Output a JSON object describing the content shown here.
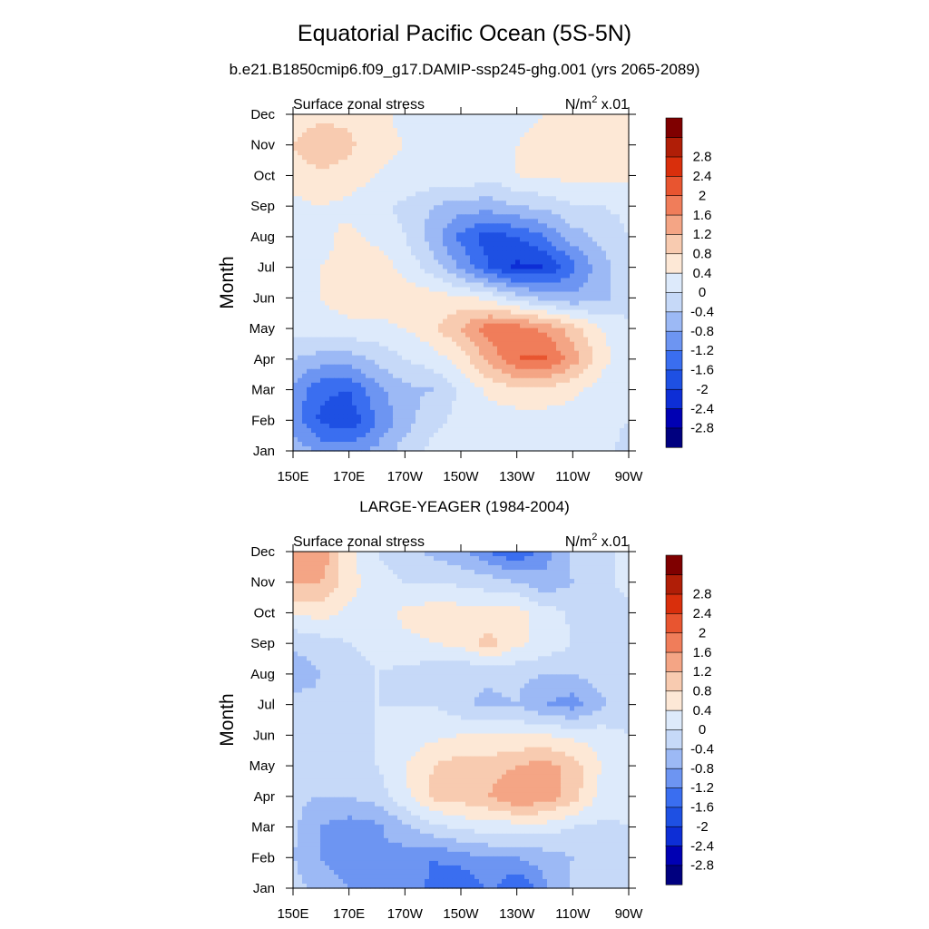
{
  "figure": {
    "title": "Equatorial Pacific Ocean (5S-5N)",
    "colorbar_colors": [
      "#00007f",
      "#0000b3",
      "#0d2ed6",
      "#1e50e3",
      "#3a6ef0",
      "#6d95f2",
      "#9cb9f5",
      "#c6d9f8",
      "#ddeafb",
      "#fde8d6",
      "#f8cbb0",
      "#f4a585",
      "#f07d5a",
      "#e85530",
      "#d92f0c",
      "#b01e07",
      "#7f0000"
    ],
    "colorbar_labels": [
      "-2.8",
      "-2.4",
      "-2",
      "-1.6",
      "-1.2",
      "-0.8",
      "-0.4",
      "0",
      "0.4",
      "0.8",
      "1.2",
      "1.6",
      "2",
      "2.4",
      "2.8"
    ]
  },
  "chart_data": [
    {
      "type": "heatmap",
      "title": "b.e21.B1850cmip6.f09_g17.DAMIP-ssp245-ghg.001 (yrs 2065-2089)",
      "left_string": "Surface zonal stress",
      "units_text": "N/m",
      "units_sup": "2",
      "units_suffix": " x.01",
      "ylabel": "Month",
      "xlim": [
        150,
        270
      ],
      "xticks": [
        150,
        170,
        190,
        210,
        230,
        250,
        270
      ],
      "xtick_labels": [
        "150E",
        "170E",
        "170W",
        "150W",
        "130W",
        "110W",
        "90W"
      ],
      "yticks": [
        1,
        2,
        3,
        4,
        5,
        6,
        7,
        8,
        9,
        10,
        11,
        12
      ],
      "ytick_labels": [
        "Jan",
        "Feb",
        "Mar",
        "Apr",
        "May",
        "Jun",
        "Jul",
        "Aug",
        "Sep",
        "Oct",
        "Nov",
        "Dec"
      ],
      "contour_levels": [
        -2.8,
        -2.4,
        -2,
        -1.6,
        -1.2,
        -0.8,
        -0.4,
        0,
        0.4,
        0.8,
        1.2,
        1.6,
        2,
        2.4,
        2.8
      ],
      "x": [
        150,
        160,
        170,
        180,
        190,
        200,
        210,
        220,
        230,
        240,
        250,
        260,
        270
      ],
      "y": [
        1,
        2,
        3,
        4,
        5,
        6,
        7,
        8,
        9,
        10,
        11,
        12
      ],
      "z": [
        [
          -0.5,
          -0.9,
          -1.0,
          -0.7,
          -0.2,
          0.1,
          0.2,
          0.3,
          0.3,
          0.3,
          0.2,
          0.1,
          -0.1
        ],
        [
          -1.0,
          -1.7,
          -1.9,
          -1.2,
          -0.6,
          -0.1,
          0.1,
          0.2,
          0.2,
          0.2,
          0.2,
          0.1,
          0.0
        ],
        [
          -0.9,
          -1.5,
          -1.6,
          -0.9,
          -0.5,
          -0.4,
          0.1,
          0.5,
          0.7,
          0.7,
          0.5,
          0.2,
          0.0
        ],
        [
          -0.4,
          -0.6,
          -0.6,
          -0.3,
          0.0,
          0.2,
          0.6,
          1.3,
          2.0,
          2.1,
          1.4,
          0.6,
          0.1
        ],
        [
          0.2,
          0.2,
          0.3,
          0.3,
          0.4,
          0.7,
          1.2,
          1.8,
          1.8,
          1.5,
          1.0,
          0.4,
          0.1
        ],
        [
          0.4,
          0.4,
          0.6,
          0.6,
          0.6,
          0.6,
          0.5,
          0.3,
          -0.2,
          -0.5,
          -0.7,
          -0.5,
          -0.2
        ],
        [
          0.3,
          0.4,
          0.5,
          0.6,
          0.3,
          -0.2,
          -0.9,
          -1.6,
          -2.1,
          -2.0,
          -1.3,
          -0.6,
          -0.1
        ],
        [
          0.1,
          0.3,
          0.5,
          0.3,
          0.0,
          -0.6,
          -1.3,
          -1.8,
          -1.6,
          -1.2,
          -0.6,
          -0.3,
          0.0
        ],
        [
          0.3,
          0.4,
          0.3,
          0.1,
          -0.1,
          -0.4,
          -0.6,
          -0.6,
          -0.4,
          -0.3,
          0.0,
          0.0,
          0.1
        ],
        [
          0.6,
          0.7,
          0.6,
          0.4,
          0.3,
          0.3,
          0.4,
          0.1,
          0.4,
          0.5,
          0.5,
          0.5,
          0.5
        ],
        [
          0.8,
          1.2,
          0.9,
          0.5,
          0.4,
          0.4,
          0.4,
          0.4,
          0.4,
          0.5,
          0.5,
          0.5,
          0.6
        ],
        [
          0.5,
          0.6,
          0.7,
          0.5,
          0.3,
          0.3,
          0.2,
          0.3,
          0.3,
          0.4,
          0.4,
          0.5,
          0.5
        ]
      ]
    },
    {
      "type": "heatmap",
      "title": "LARGE-YEAGER (1984-2004)",
      "left_string": "Surface zonal stress",
      "units_text": "N/m",
      "units_sup": "2",
      "units_suffix": " x.01",
      "ylabel": "Month",
      "xlim": [
        150,
        270
      ],
      "xticks": [
        150,
        170,
        190,
        210,
        230,
        250,
        270
      ],
      "xtick_labels": [
        "150E",
        "170E",
        "170W",
        "150W",
        "130W",
        "110W",
        "90W"
      ],
      "yticks": [
        1,
        2,
        3,
        4,
        5,
        6,
        7,
        8,
        9,
        10,
        11,
        12
      ],
      "ytick_labels": [
        "Jan",
        "Feb",
        "Mar",
        "Apr",
        "May",
        "Jun",
        "Jul",
        "Aug",
        "Sep",
        "Oct",
        "Nov",
        "Dec"
      ],
      "contour_levels": [
        -2.8,
        -2.4,
        -2,
        -1.6,
        -1.2,
        -0.8,
        -0.4,
        0,
        0.4,
        0.8,
        1.2,
        1.6,
        2,
        2.4,
        2.8
      ],
      "x": [
        150,
        160,
        170,
        180,
        190,
        200,
        210,
        220,
        230,
        240,
        250,
        260,
        270
      ],
      "y": [
        1,
        2,
        3,
        4,
        5,
        6,
        7,
        8,
        9,
        10,
        11,
        12
      ],
      "z": [
        [
          -0.2,
          -0.6,
          -0.8,
          -0.9,
          -0.9,
          -1.3,
          -1.6,
          -1.1,
          -1.6,
          -0.9,
          -0.3,
          -0.1,
          0.0
        ],
        [
          -0.4,
          -0.8,
          -1.0,
          -0.8,
          -1.0,
          -1.2,
          -1.0,
          -0.8,
          -0.8,
          -0.6,
          -0.4,
          -0.2,
          0.0
        ],
        [
          -0.3,
          -0.8,
          -1.0,
          -0.9,
          -0.5,
          -0.1,
          0.1,
          0.2,
          0.2,
          0.2,
          0.0,
          -0.1,
          0.0
        ],
        [
          -0.3,
          -0.4,
          -0.4,
          -0.2,
          0.3,
          0.9,
          1.0,
          1.2,
          1.6,
          1.5,
          1.0,
          0.3,
          0.1
        ],
        [
          -0.2,
          -0.3,
          -0.2,
          0.0,
          0.4,
          0.8,
          1.0,
          1.0,
          1.2,
          1.4,
          1.0,
          0.4,
          0.1
        ],
        [
          -0.2,
          -0.3,
          -0.2,
          0.0,
          0.1,
          0.3,
          0.4,
          0.4,
          0.4,
          0.4,
          0.3,
          0.2,
          0.0
        ],
        [
          -0.2,
          -0.3,
          -0.2,
          0.0,
          0.0,
          0.0,
          -0.3,
          -0.5,
          -0.4,
          -0.8,
          -1.0,
          -0.5,
          -0.1
        ],
        [
          -0.7,
          -0.4,
          -0.2,
          0.0,
          -0.1,
          -0.3,
          -0.4,
          -0.3,
          -0.3,
          -0.4,
          -0.4,
          -0.2,
          -0.1
        ],
        [
          -0.3,
          -0.2,
          0.0,
          0.1,
          0.3,
          0.4,
          0.5,
          1.0,
          0.5,
          0.3,
          0.0,
          -0.2,
          -0.1
        ],
        [
          0.4,
          0.6,
          0.3,
          0.2,
          0.5,
          0.6,
          0.6,
          0.5,
          0.6,
          0.2,
          -0.1,
          -0.2,
          -0.1
        ],
        [
          1.3,
          1.2,
          0.6,
          0.1,
          0.0,
          0.0,
          -0.1,
          -0.2,
          -0.4,
          -0.7,
          -0.4,
          -0.1,
          0.1
        ],
        [
          1.6,
          1.5,
          0.5,
          0.0,
          -0.2,
          -0.5,
          -0.7,
          -1.2,
          -1.6,
          -1.0,
          -0.3,
          -0.1,
          0.1
        ]
      ]
    }
  ]
}
